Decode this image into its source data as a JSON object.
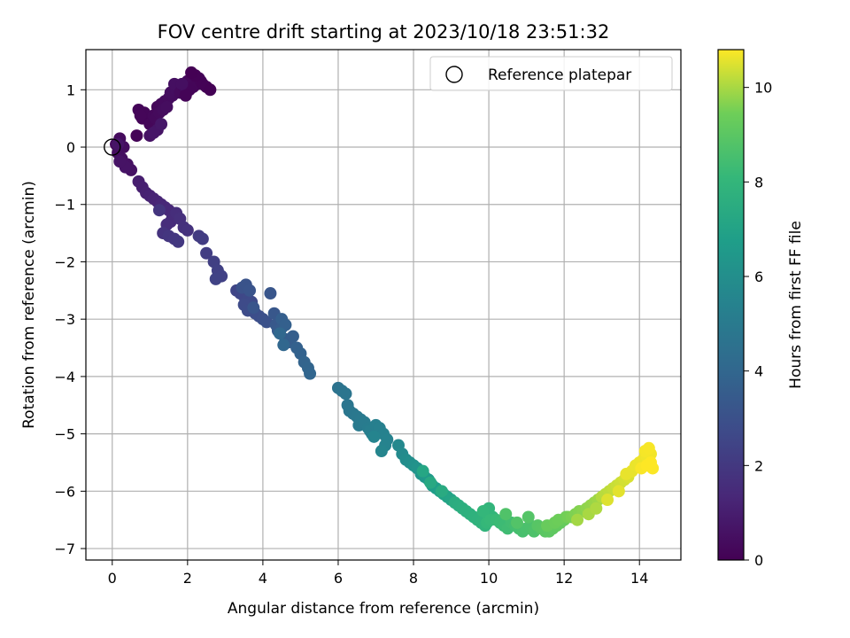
{
  "chart_data": {
    "type": "scatter",
    "title": "FOV centre drift starting at 2023/10/18 23:51:32",
    "xlabel": "Angular distance from reference (arcmin)",
    "ylabel": "Rotation from reference (arcmin)",
    "xlim": [
      -0.7,
      15.1
    ],
    "ylim": [
      -7.2,
      1.7
    ],
    "xticks": [
      0,
      2,
      4,
      6,
      8,
      10,
      12,
      14
    ],
    "yticks": [
      1,
      0,
      -1,
      -2,
      -3,
      -4,
      -5,
      -6,
      -7
    ],
    "grid": true,
    "legend": {
      "placement": "top-right",
      "entries": [
        "Reference platepar"
      ]
    },
    "reference_point": {
      "x": 0,
      "y": 0,
      "label": "Reference platepar"
    },
    "colorbar": {
      "label": "Hours from first FF file",
      "min": 0,
      "max": 10.8,
      "ticks": [
        0,
        2,
        4,
        6,
        8,
        10
      ],
      "colormap": "viridis"
    },
    "x": [
      0.1,
      0.2,
      0.3,
      0.15,
      0.25,
      0.4,
      0.5,
      0.35,
      0.2,
      0.15,
      0.65,
      0.8,
      0.7,
      0.85,
      0.75,
      1.0,
      1.1,
      1.2,
      1.3,
      1.15,
      1.25,
      1.4,
      1.5,
      1.6,
      1.35,
      1.45,
      1.55,
      1.7,
      1.75,
      1.65,
      1.8,
      1.9,
      2.0,
      2.1,
      2.2,
      2.3,
      2.25,
      2.15,
      2.05,
      1.95,
      2.35,
      2.4,
      2.5,
      2.6,
      2.2,
      2.1,
      1.85,
      1.0,
      1.2,
      1.1,
      1.3,
      0.7,
      0.8,
      0.9,
      1.0,
      1.1,
      1.2,
      1.3,
      1.4,
      1.5,
      1.6,
      1.55,
      1.45,
      1.7,
      1.8,
      1.9,
      2.0,
      1.35,
      1.25,
      1.5,
      1.65,
      1.75,
      2.3,
      2.4,
      2.5,
      2.7,
      2.8,
      2.9,
      2.75,
      3.3,
      3.4,
      3.5,
      3.6,
      3.7,
      3.5,
      3.6,
      3.8,
      3.9,
      4.0,
      4.1,
      3.45,
      3.55,
      3.65,
      3.75,
      4.2,
      4.3,
      4.35,
      4.4,
      4.5,
      4.6,
      4.7,
      4.8,
      4.5,
      4.6,
      4.9,
      5.0,
      5.1,
      5.2,
      5.25,
      4.55,
      4.45,
      6.0,
      6.1,
      6.2,
      6.25,
      6.3,
      6.4,
      6.5,
      6.6,
      6.55,
      6.7,
      6.8,
      6.9,
      6.85,
      7.0,
      7.1,
      7.2,
      7.3,
      7.25,
      6.95,
      7.15,
      7.6,
      7.7,
      7.8,
      7.9,
      8.0,
      8.1,
      8.2,
      8.3,
      8.4,
      8.5,
      8.6,
      8.7,
      8.8,
      8.9,
      9.0,
      8.25,
      8.45,
      8.75,
      9.1,
      9.2,
      9.3,
      9.4,
      9.5,
      9.6,
      9.7,
      9.8,
      9.9,
      10.0,
      10.1,
      9.85,
      9.95,
      10.05,
      10.2,
      10.3,
      10.4,
      10.5,
      10.6,
      10.7,
      10.8,
      10.9,
      11.0,
      11.1,
      11.2,
      10.45,
      10.75,
      11.05,
      11.3,
      11.4,
      11.5,
      11.6,
      11.7,
      11.8,
      11.9,
      12.0,
      11.55,
      11.75,
      11.85,
      12.05,
      12.1,
      12.2,
      12.3,
      12.4,
      12.5,
      12.6,
      12.7,
      12.8,
      12.9,
      12.35,
      12.65,
      12.85,
      13.0,
      13.1,
      13.2,
      13.3,
      13.4,
      13.5,
      13.6,
      13.7,
      13.15,
      13.45,
      13.65,
      13.8,
      13.9,
      14.0,
      14.1,
      14.2,
      14.3,
      14.15,
      14.25,
      14.05,
      14.35,
      14.2,
      14.3
    ],
    "y": [
      0.05,
      0.15,
      0.0,
      -0.1,
      -0.2,
      -0.3,
      -0.4,
      -0.35,
      -0.25,
      0.05,
      0.2,
      0.5,
      0.65,
      0.6,
      0.55,
      0.4,
      0.55,
      0.7,
      0.75,
      0.5,
      0.6,
      0.8,
      0.85,
      0.9,
      0.65,
      0.7,
      0.95,
      1.0,
      1.05,
      1.1,
      0.95,
      1.05,
      1.15,
      1.2,
      1.25,
      1.2,
      1.1,
      1.05,
      1.0,
      0.9,
      1.15,
      1.1,
      1.05,
      1.0,
      1.25,
      1.3,
      1.1,
      0.2,
      0.3,
      0.25,
      0.4,
      -0.6,
      -0.7,
      -0.8,
      -0.85,
      -0.9,
      -0.95,
      -1.0,
      -1.05,
      -1.1,
      -1.2,
      -1.3,
      -1.35,
      -1.15,
      -1.25,
      -1.4,
      -1.45,
      -1.5,
      -1.1,
      -1.55,
      -1.6,
      -1.65,
      -1.55,
      -1.6,
      -1.85,
      -2.0,
      -2.15,
      -2.25,
      -2.3,
      -2.5,
      -2.55,
      -2.6,
      -2.65,
      -2.7,
      -2.75,
      -2.85,
      -2.9,
      -2.95,
      -3.0,
      -3.05,
      -2.45,
      -2.4,
      -2.5,
      -2.8,
      -2.55,
      -2.9,
      -3.1,
      -3.2,
      -3.15,
      -3.35,
      -3.4,
      -3.3,
      -3.0,
      -3.1,
      -3.5,
      -3.6,
      -3.75,
      -3.85,
      -3.95,
      -3.45,
      -3.25,
      -4.2,
      -4.25,
      -4.3,
      -4.5,
      -4.6,
      -4.65,
      -4.7,
      -4.75,
      -4.85,
      -4.8,
      -4.9,
      -5.0,
      -4.95,
      -4.85,
      -4.9,
      -5.0,
      -5.1,
      -5.2,
      -5.05,
      -5.3,
      -5.2,
      -5.35,
      -5.45,
      -5.5,
      -5.55,
      -5.6,
      -5.7,
      -5.75,
      -5.8,
      -5.9,
      -5.95,
      -6.0,
      -6.05,
      -6.1,
      -6.15,
      -5.65,
      -5.85,
      -6.0,
      -6.2,
      -6.25,
      -6.3,
      -6.35,
      -6.4,
      -6.45,
      -6.5,
      -6.55,
      -6.6,
      -6.3,
      -6.45,
      -6.35,
      -6.55,
      -6.5,
      -6.5,
      -6.55,
      -6.6,
      -6.65,
      -6.55,
      -6.6,
      -6.65,
      -6.7,
      -6.65,
      -6.6,
      -6.7,
      -6.4,
      -6.55,
      -6.45,
      -6.6,
      -6.65,
      -6.7,
      -6.7,
      -6.65,
      -6.6,
      -6.55,
      -6.5,
      -6.6,
      -6.55,
      -6.5,
      -6.45,
      -6.45,
      -6.45,
      -6.4,
      -6.35,
      -6.35,
      -6.3,
      -6.25,
      -6.2,
      -6.15,
      -6.5,
      -6.4,
      -6.3,
      -6.1,
      -6.05,
      -6.0,
      -5.95,
      -5.9,
      -5.85,
      -5.8,
      -5.75,
      -6.15,
      -6.0,
      -5.7,
      -5.65,
      -5.55,
      -5.5,
      -5.45,
      -5.4,
      -5.35,
      -5.3,
      -5.25,
      -5.6,
      -5.6,
      -5.55,
      -5.5
    ],
    "hours": [
      0.3,
      0.35,
      0.4,
      0.45,
      0.5,
      0.55,
      0.6,
      0.62,
      0.64,
      0.66,
      0.1,
      0.12,
      0.14,
      0.16,
      0.18,
      0.2,
      0.22,
      0.24,
      0.26,
      0.28,
      0.3,
      0.32,
      0.34,
      0.36,
      0.38,
      0.4,
      0.42,
      0.44,
      0.46,
      0.48,
      0.3,
      0.28,
      0.26,
      0.24,
      0.22,
      0.2,
      0.18,
      0.16,
      0.14,
      0.12,
      0.1,
      0.08,
      0.06,
      0.04,
      0.02,
      0.0,
      0.5,
      0.6,
      0.65,
      0.7,
      0.75,
      1.0,
      1.05,
      1.1,
      1.15,
      1.2,
      1.25,
      1.3,
      1.35,
      1.4,
      1.45,
      1.5,
      1.55,
      1.6,
      1.65,
      1.7,
      1.75,
      1.8,
      1.85,
      1.9,
      1.95,
      2.0,
      2.1,
      2.15,
      2.2,
      2.25,
      2.3,
      2.35,
      2.4,
      2.5,
      2.55,
      2.6,
      2.65,
      2.7,
      2.75,
      2.8,
      2.85,
      2.9,
      2.95,
      3.0,
      3.05,
      3.1,
      3.15,
      3.2,
      3.25,
      3.3,
      3.35,
      3.4,
      3.45,
      3.5,
      3.55,
      3.6,
      3.65,
      3.7,
      3.75,
      3.8,
      3.85,
      3.9,
      3.95,
      4.0,
      4.05,
      4.6,
      4.65,
      4.7,
      4.75,
      4.8,
      4.85,
      4.9,
      4.95,
      5.0,
      5.05,
      5.1,
      5.15,
      5.2,
      5.25,
      5.3,
      5.35,
      5.4,
      5.45,
      5.5,
      5.55,
      5.7,
      5.8,
      5.9,
      6.0,
      6.1,
      6.2,
      6.3,
      6.4,
      6.5,
      6.6,
      6.7,
      6.8,
      6.9,
      7.0,
      7.1,
      7.2,
      7.3,
      7.4,
      7.5,
      7.55,
      7.6,
      7.65,
      7.7,
      7.75,
      7.8,
      7.85,
      7.9,
      7.95,
      8.0,
      8.05,
      8.1,
      8.15,
      8.2,
      8.25,
      8.3,
      8.35,
      8.4,
      8.45,
      8.5,
      8.55,
      8.6,
      8.65,
      8.7,
      8.75,
      8.8,
      8.85,
      8.9,
      8.95,
      9.0,
      9.05,
      9.1,
      9.15,
      9.2,
      9.25,
      9.3,
      9.35,
      9.4,
      9.45,
      9.5,
      9.55,
      9.6,
      9.65,
      9.7,
      9.75,
      9.8,
      9.85,
      9.9,
      9.95,
      10.0,
      10.05,
      10.1,
      10.15,
      10.2,
      10.25,
      10.3,
      10.35,
      10.4,
      10.45,
      10.5,
      10.55,
      10.6,
      10.6,
      10.62,
      10.64,
      10.66,
      10.68,
      10.7,
      10.72,
      10.74,
      10.76,
      10.78,
      10.8,
      10.8
    ]
  }
}
